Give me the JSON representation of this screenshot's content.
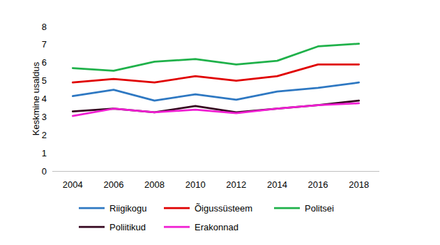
{
  "chart_data": {
    "type": "line",
    "y_label": "Keskmine usaldus",
    "categories": [
      "2004",
      "2006",
      "2008",
      "2010",
      "2012",
      "2014",
      "2016",
      "2018"
    ],
    "series": [
      {
        "name": "Riigikogu",
        "color": "#2e78c2",
        "values": [
          4.15,
          4.5,
          3.9,
          4.25,
          3.95,
          4.4,
          4.6,
          4.9
        ]
      },
      {
        "name": "Õigussüsteem",
        "color": "#e00000",
        "values": [
          4.9,
          5.1,
          4.9,
          5.25,
          5.0,
          5.25,
          5.9,
          5.9
        ]
      },
      {
        "name": "Politsei",
        "color": "#1fb14a",
        "values": [
          5.7,
          5.55,
          6.05,
          6.2,
          5.9,
          6.1,
          6.9,
          7.05
        ]
      },
      {
        "name": "Poliitikud",
        "color": "#35061f",
        "values": [
          3.3,
          3.45,
          3.25,
          3.6,
          3.25,
          3.45,
          3.65,
          3.9
        ]
      },
      {
        "name": "Erakonnad",
        "color": "#f01ed2",
        "values": [
          3.05,
          3.45,
          3.25,
          3.4,
          3.2,
          3.45,
          3.65,
          3.75
        ]
      }
    ],
    "ylim": [
      0,
      8
    ],
    "yticks": [
      0,
      1,
      2,
      3,
      4,
      5,
      6,
      7,
      8
    ],
    "grid": false,
    "legend": "bottom"
  }
}
